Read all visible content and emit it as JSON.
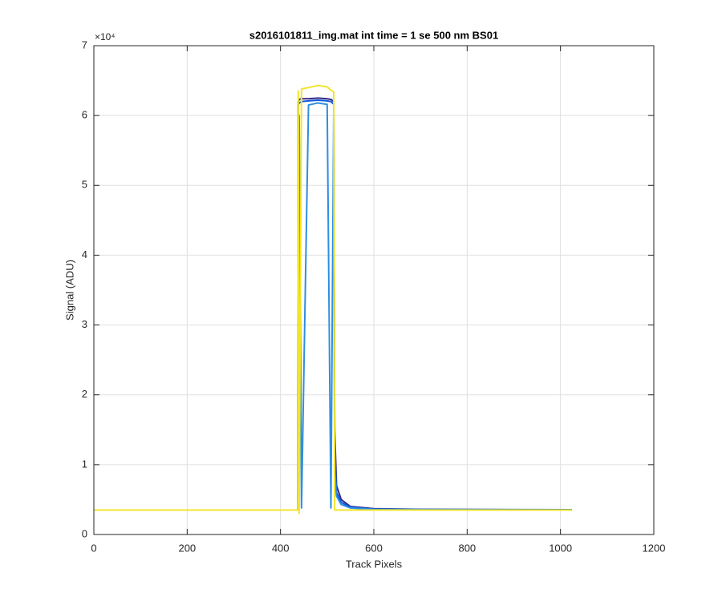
{
  "chart_data": {
    "type": "line",
    "title": "s2016101811_img.mat int time = 1 se  500 nm BS01",
    "xlabel": "Track Pixels",
    "ylabel": "Signal (ADU)",
    "y_exponent": "×10⁴",
    "x": [
      1,
      437,
      438,
      440,
      445,
      460,
      480,
      500,
      508,
      514,
      516,
      520,
      530,
      550,
      600,
      700,
      1024
    ],
    "series": [
      {
        "color": "#352a87",
        "values": [
          3500,
          3500,
          62000,
          62300,
          62400,
          62400,
          62500,
          62400,
          62300,
          62000,
          15000,
          7000,
          5000,
          4000,
          3700,
          3600,
          3550
        ]
      },
      {
        "color": "#0f5cdd",
        "values": [
          3500,
          3500,
          61500,
          61800,
          62000,
          62100,
          62200,
          62100,
          62000,
          61600,
          12000,
          6000,
          4600,
          3900,
          3650,
          3580,
          3540
        ]
      },
      {
        "color": "#2f8ee0",
        "values": [
          3500,
          3500,
          3500,
          60000,
          3800,
          61500,
          61800,
          61600,
          3800,
          60500,
          9000,
          5500,
          4300,
          3800,
          3600,
          3560,
          3530
        ]
      },
      {
        "color": "#f1e52a",
        "values": [
          3500,
          3500,
          63500,
          3000,
          63800,
          64000,
          64300,
          64100,
          63600,
          63400,
          3500,
          3500,
          3500,
          3500,
          3500,
          3500,
          3500
        ]
      }
    ],
    "xlim": [
      0,
      1200
    ],
    "xticks": [
      0,
      200,
      400,
      600,
      800,
      1000,
      1200
    ],
    "ylim": [
      0,
      70000
    ],
    "yticks": [
      {
        "value": 0,
        "label": "0"
      },
      {
        "value": 10000,
        "label": "1"
      },
      {
        "value": 20000,
        "label": "2"
      },
      {
        "value": 30000,
        "label": "3"
      },
      {
        "value": 40000,
        "label": "4"
      },
      {
        "value": 50000,
        "label": "5"
      },
      {
        "value": 60000,
        "label": "6"
      },
      {
        "value": 70000,
        "label": "7"
      }
    ],
    "grid": true
  }
}
